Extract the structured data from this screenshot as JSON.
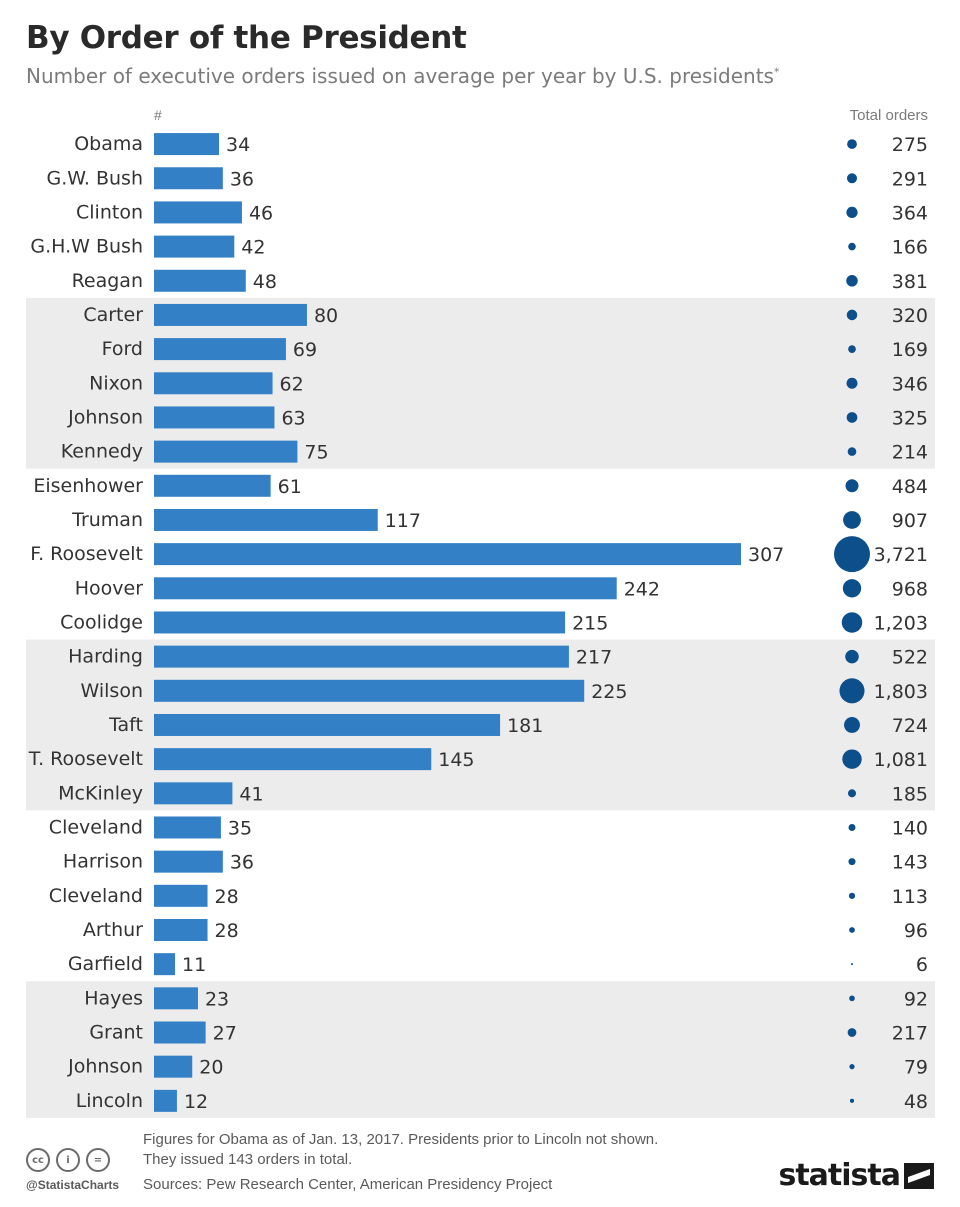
{
  "header": {
    "title": "By Order of the President",
    "subtitle": "Number of executive orders issued on average per year by U.S. presidents",
    "subtitle_mark": "*"
  },
  "columns": {
    "left": "#",
    "right": "Total orders"
  },
  "chart_data": {
    "type": "bar",
    "orientation": "horizontal",
    "categories": [
      "Obama",
      "G.W. Bush",
      "Clinton",
      "G.H.W Bush",
      "Reagan",
      "Carter",
      "Ford",
      "Nixon",
      "Johnson",
      "Kennedy",
      "Eisenhower",
      "Truman",
      "F. Roosevelt",
      "Hoover",
      "Coolidge",
      "Harding",
      "Wilson",
      "Taft",
      "T. Roosevelt",
      "McKinley",
      "Cleveland",
      "Harrison",
      "Cleveland",
      "Arthur",
      "Garfield",
      "Hayes",
      "Grant",
      "Johnson",
      "Lincoln"
    ],
    "series": [
      {
        "values": [
          34,
          36,
          46,
          42,
          48,
          80,
          69,
          62,
          63,
          75,
          61,
          117,
          307,
          242,
          215,
          217,
          225,
          181,
          145,
          41,
          35,
          36,
          28,
          28,
          11,
          23,
          27,
          20,
          12
        ]
      }
    ],
    "totals": [
      275,
      291,
      364,
      166,
      381,
      320,
      169,
      346,
      325,
      214,
      484,
      907,
      3721,
      968,
      1203,
      522,
      1803,
      724,
      1081,
      185,
      140,
      143,
      113,
      96,
      6,
      92,
      217,
      79,
      48
    ],
    "totals_labels": [
      "275",
      "291",
      "364",
      "166",
      "381",
      "320",
      "169",
      "346",
      "325",
      "214",
      "484",
      "907",
      "3,721",
      "968",
      "1,203",
      "522",
      "1,803",
      "724",
      "1,081",
      "185",
      "140",
      "143",
      "113",
      "96",
      "6",
      "92",
      "217",
      "79",
      "48"
    ],
    "shaded_groups": [
      [
        5,
        9
      ],
      [
        15,
        19
      ],
      [
        25,
        28
      ]
    ],
    "xlim": [
      0,
      307
    ],
    "bar_color": "#3480c6",
    "bubble_color": "#0d4f8b",
    "band_color": "#ececec"
  },
  "footer": {
    "note_line1": "Figures for Obama as of Jan. 13, 2017. Presidents prior to Lincoln not shown.",
    "note_line2": "They issued 143 orders in total.",
    "sources": "Sources: Pew Research Center, American Presidency Project",
    "handle": "@StatistaCharts",
    "logo": "statista",
    "cc_icons": [
      "cc-icon",
      "by-icon",
      "nd-icon"
    ],
    "cc_labels": [
      "cc",
      "i",
      "="
    ]
  }
}
